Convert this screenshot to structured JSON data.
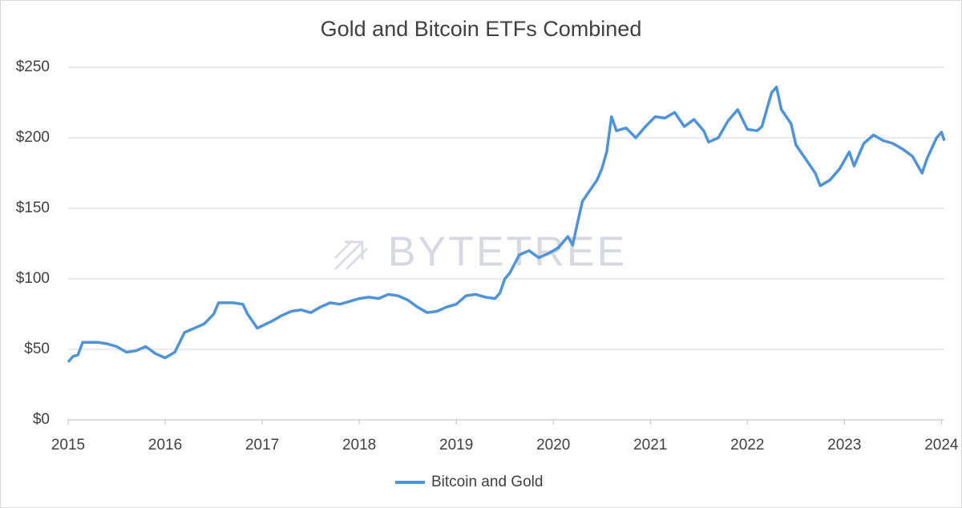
{
  "chart_data": {
    "type": "line",
    "title": "Gold and Bitcoin ETFs Combined",
    "watermark": "BYTETREE",
    "x": [
      2015.0,
      2015.05,
      2015.1,
      2015.15,
      2015.2,
      2015.3,
      2015.4,
      2015.5,
      2015.6,
      2015.7,
      2015.8,
      2015.9,
      2016.0,
      2016.1,
      2016.2,
      2016.3,
      2016.4,
      2016.5,
      2016.55,
      2016.7,
      2016.8,
      2016.85,
      2016.95,
      2017.1,
      2017.2,
      2017.3,
      2017.4,
      2017.5,
      2017.6,
      2017.7,
      2017.8,
      2017.9,
      2018.0,
      2018.1,
      2018.2,
      2018.3,
      2018.4,
      2018.5,
      2018.6,
      2018.7,
      2018.8,
      2018.9,
      2019.0,
      2019.1,
      2019.2,
      2019.3,
      2019.4,
      2019.45,
      2019.5,
      2019.55,
      2019.65,
      2019.75,
      2019.85,
      2019.95,
      2020.05,
      2020.15,
      2020.2,
      2020.25,
      2020.3,
      2020.4,
      2020.45,
      2020.5,
      2020.55,
      2020.6,
      2020.65,
      2020.75,
      2020.85,
      2020.95,
      2021.05,
      2021.15,
      2021.25,
      2021.35,
      2021.45,
      2021.55,
      2021.6,
      2021.7,
      2021.8,
      2021.9,
      2022.0,
      2022.1,
      2022.15,
      2022.25,
      2022.3,
      2022.35,
      2022.45,
      2022.5,
      2022.6,
      2022.7,
      2022.75,
      2022.85,
      2022.95,
      2023.05,
      2023.1,
      2023.2,
      2023.3,
      2023.4,
      2023.5,
      2023.6,
      2023.7,
      2023.8,
      2023.85,
      2023.95,
      2024.0,
      2024.03
    ],
    "series": [
      {
        "name": "Bitcoin and Gold",
        "color": "#4f93d8",
        "values": [
          41,
          45,
          46,
          55,
          55,
          55,
          54,
          52,
          48,
          49,
          52,
          47,
          44,
          48,
          62,
          65,
          68,
          75,
          83,
          83,
          82,
          75,
          65,
          70,
          74,
          77,
          78,
          76,
          80,
          83,
          82,
          84,
          86,
          87,
          86,
          89,
          88,
          85,
          80,
          76,
          77,
          80,
          82,
          88,
          89,
          87,
          86,
          90,
          100,
          104,
          117,
          120,
          115,
          118,
          122,
          130,
          124,
          140,
          155,
          165,
          170,
          178,
          190,
          215,
          205,
          207,
          200,
          208,
          215,
          214,
          218,
          208,
          213,
          205,
          197,
          200,
          212,
          220,
          206,
          205,
          208,
          232,
          236,
          220,
          210,
          195,
          185,
          175,
          166,
          170,
          178,
          190,
          180,
          196,
          202,
          198,
          196,
          192,
          187,
          175,
          185,
          200,
          204,
          198
        ]
      }
    ],
    "xlim": [
      2015,
      2024.03
    ],
    "xticks": [
      2015,
      2016,
      2017,
      2018,
      2019,
      2020,
      2021,
      2022,
      2023,
      2024
    ],
    "ylim": [
      0,
      250
    ],
    "yticks": [
      {
        "value": 0,
        "label": "$0"
      },
      {
        "value": 50,
        "label": "$50"
      },
      {
        "value": 100,
        "label": "$100"
      },
      {
        "value": 150,
        "label": "$150"
      },
      {
        "value": 200,
        "label": "$200"
      },
      {
        "value": 250,
        "label": "$250"
      }
    ],
    "grid": true
  }
}
